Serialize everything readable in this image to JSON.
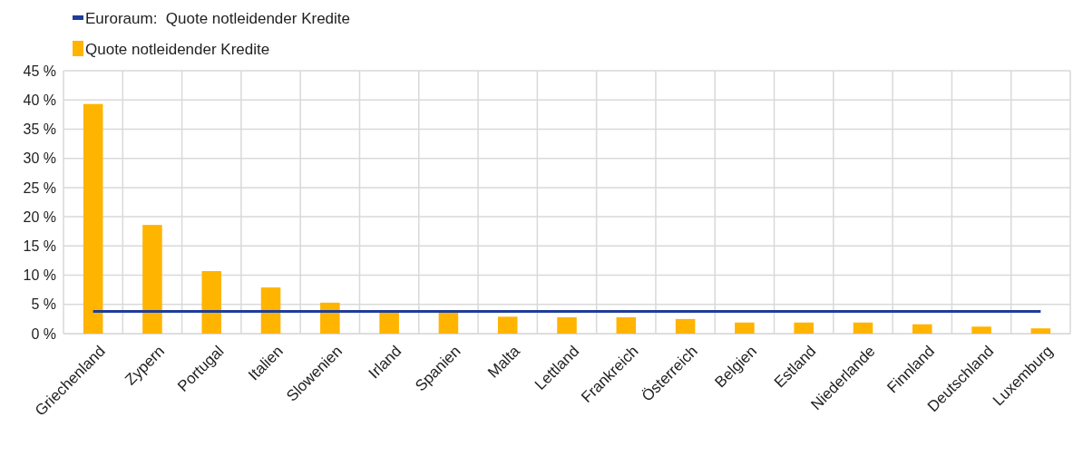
{
  "chart_data": {
    "type": "bar",
    "categories": [
      "Griechenland",
      "Zypern",
      "Portugal",
      "Italien",
      "Slowenien",
      "Irland",
      "Spanien",
      "Malta",
      "Lettland",
      "Frankreich",
      "Österreich",
      "Belgien",
      "Estland",
      "Niederlande",
      "Finnland",
      "Deutschland",
      "Luxemburg"
    ],
    "series": [
      {
        "name": "Euroraum:  Quote notleidender Kredite",
        "type": "line",
        "color": "#1f3d99",
        "values": [
          3.8,
          3.8,
          3.8,
          3.8,
          3.8,
          3.8,
          3.8,
          3.8,
          3.8,
          3.8,
          3.8,
          3.8,
          3.8,
          3.8,
          3.8,
          3.8,
          3.8
        ]
      },
      {
        "name": "Quote notleidender Kredite",
        "color": "#ffb400",
        "values": [
          39.3,
          18.6,
          10.7,
          7.9,
          5.3,
          3.6,
          3.6,
          2.9,
          2.8,
          2.8,
          2.5,
          1.9,
          1.9,
          1.9,
          1.6,
          1.2,
          0.9
        ]
      }
    ],
    "ylim": [
      0,
      45
    ],
    "yticks": [
      {
        "value": 0,
        "label": "0 %"
      },
      {
        "value": 5,
        "label": "5 %"
      },
      {
        "value": 10,
        "label": "10 %"
      },
      {
        "value": 15,
        "label": "15 %"
      },
      {
        "value": 20,
        "label": "20 %"
      },
      {
        "value": 25,
        "label": "25 %"
      },
      {
        "value": 30,
        "label": "30 %"
      },
      {
        "value": 35,
        "label": "35 %"
      },
      {
        "value": 40,
        "label": "40 %"
      },
      {
        "value": 45,
        "label": "45 %"
      }
    ],
    "grid": true,
    "legend": "top left"
  }
}
